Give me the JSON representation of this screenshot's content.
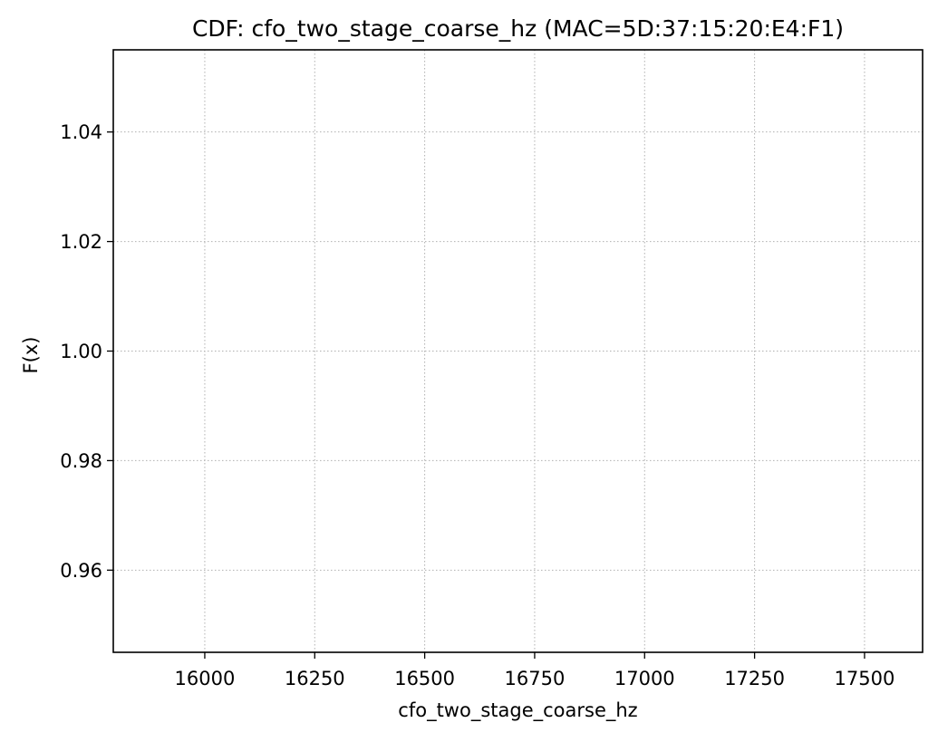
{
  "chart_data": {
    "type": "line",
    "title": "CDF: cfo_two_stage_coarse_hz (MAC=5D:37:15:20:E4:F1)",
    "xlabel": "cfo_two_stage_coarse_hz",
    "ylabel": "F(x)",
    "xlim": [
      15792,
      17632
    ],
    "ylim": [
      0.945,
      1.055
    ],
    "xticks": [
      16000,
      16250,
      16500,
      16750,
      17000,
      17250,
      17500
    ],
    "xtick_labels": [
      "16000",
      "16250",
      "16500",
      "16750",
      "17000",
      "17250",
      "17500"
    ],
    "yticks": [
      0.96,
      0.98,
      1.0,
      1.02,
      1.04
    ],
    "ytick_labels": [
      "0.96",
      "0.98",
      "1.00",
      "1.02",
      "1.04"
    ],
    "grid": true,
    "series": []
  }
}
